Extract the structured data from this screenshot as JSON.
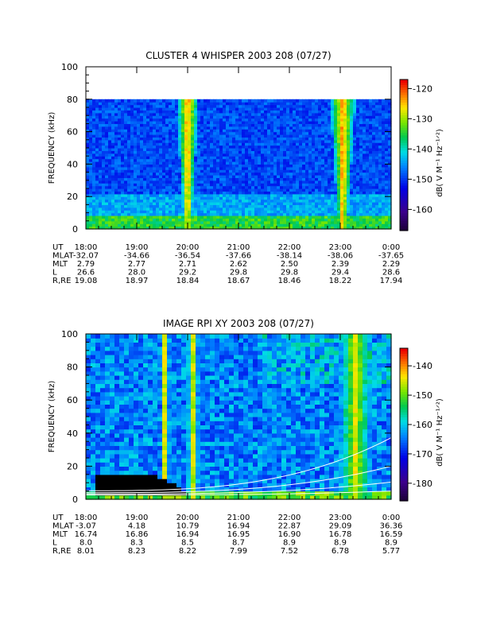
{
  "chart_data": [
    {
      "type": "heatmap",
      "title": "CLUSTER 4 WHISPER 2003 208 (07/27)",
      "ylabel": "FREQUENCY (kHz)",
      "ylim": [
        0,
        100
      ],
      "yticks": [
        "0",
        "20",
        "40",
        "60",
        "80",
        "100"
      ],
      "x_ticks": [
        "18:00",
        "19:00",
        "20:00",
        "21:00",
        "22:00",
        "23:00",
        "0:00"
      ],
      "data_ylim": [
        0,
        80
      ],
      "colorbar": {
        "label": "dB( V M⁻¹ Hz⁻¹ᐟ²)",
        "ticks": [
          "-120",
          "-130",
          "-140",
          "-150",
          "-160"
        ],
        "range": [
          -167,
          -117
        ]
      },
      "ephemeris": [
        {
          "name": "UT",
          "values": [
            "18:00",
            "19:00",
            "20:00",
            "21:00",
            "22:00",
            "23:00",
            "0:00"
          ]
        },
        {
          "name": "MLAT",
          "values": [
            "-32.07",
            "-34.66",
            "-36.54",
            "-37.66",
            "-38.14",
            "-38.06",
            "-37.65"
          ]
        },
        {
          "name": "MLT",
          "values": [
            "2.79",
            "2.77",
            "2.71",
            "2.62",
            "2.50",
            "2.39",
            "2.29"
          ]
        },
        {
          "name": "L",
          "values": [
            "26.6",
            "28.0",
            "29.2",
            "29.8",
            "29.8",
            "29.4",
            "28.6"
          ]
        },
        {
          "name": "R,RE",
          "values": [
            "19.08",
            "18.97",
            "18.84",
            "18.67",
            "18.46",
            "18.22",
            "17.94"
          ]
        }
      ],
      "intense_emission_bands": [
        {
          "center_ut": 20.0,
          "half_width_h": 0.22
        },
        {
          "center_ut": 23.05,
          "half_width_h": 0.25
        }
      ]
    },
    {
      "type": "heatmap",
      "title": "IMAGE RPI XY 2003 208 (07/27)",
      "ylabel": "FREQUENCY (kHz)",
      "ylim": [
        0,
        100
      ],
      "yticks": [
        "0",
        "20",
        "40",
        "60",
        "80",
        "100"
      ],
      "x_ticks": [
        "18:00",
        "19:00",
        "20:00",
        "21:00",
        "22:00",
        "23:00",
        "0:00"
      ],
      "data_ylim": [
        0,
        100
      ],
      "colorbar": {
        "label": "dB( V M⁻¹ Hz⁻¹ᐟ²)",
        "ticks": [
          "-140",
          "-150",
          "-160",
          "-170",
          "-180"
        ],
        "range": [
          -186,
          -134
        ]
      },
      "ephemeris": [
        {
          "name": "UT",
          "values": [
            "18:00",
            "19:00",
            "20:00",
            "21:00",
            "22:00",
            "23:00",
            "0:00"
          ]
        },
        {
          "name": "MLAT",
          "values": [
            "-3.07",
            "4.18",
            "10.79",
            "16.94",
            "22.87",
            "29.09",
            "36.36"
          ]
        },
        {
          "name": "MLT",
          "values": [
            "16.74",
            "16.86",
            "16.94",
            "16.95",
            "16.90",
            "16.78",
            "16.59"
          ]
        },
        {
          "name": "L",
          "values": [
            "8.0",
            "8.3",
            "8.5",
            "8.7",
            "8.9",
            "8.9",
            "8.9"
          ]
        },
        {
          "name": "R,RE",
          "values": [
            "8.01",
            "8.23",
            "8.22",
            "7.99",
            "7.52",
            "6.78",
            "5.77"
          ]
        }
      ],
      "intense_emission_bands": [
        {
          "center_ut": 19.55,
          "half_width_h": 0.1
        },
        {
          "center_ut": 20.1,
          "half_width_h": 0.12
        },
        {
          "center_ut": 23.3,
          "half_width_h": 0.35
        }
      ]
    }
  ]
}
